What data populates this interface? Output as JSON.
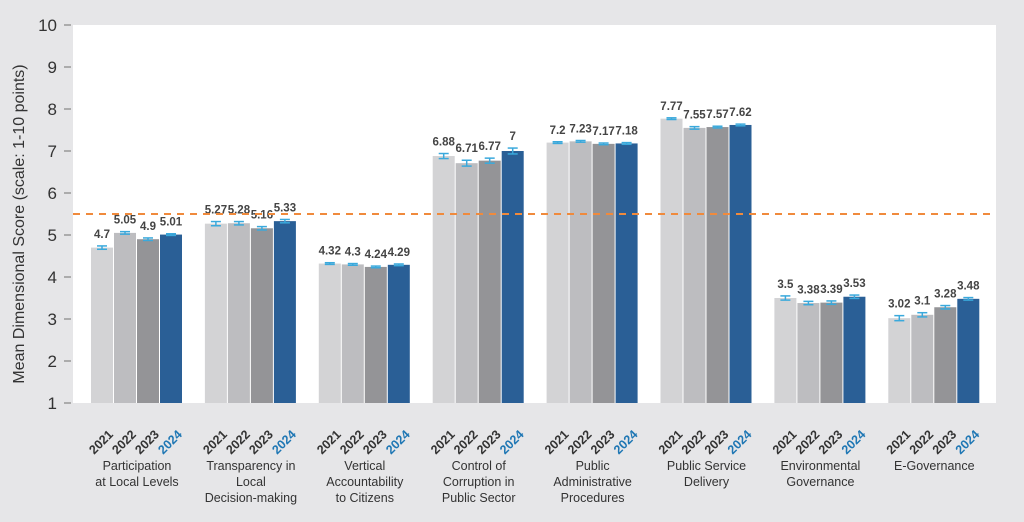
{
  "chart_data": {
    "type": "bar",
    "title": "",
    "xlabel": "",
    "ylabel": "Mean Dimensional Score (scale: 1-10 points)",
    "ylim": [
      1,
      10
    ],
    "yticks": [
      1,
      2,
      3,
      4,
      5,
      6,
      7,
      8,
      9,
      10
    ],
    "grid": false,
    "reference_line": {
      "value": 5.5,
      "style": "dashed",
      "color": "#f08a3c"
    },
    "categories": [
      "Participation at Local Levels",
      "Transparency in Local Decision-making",
      "Vertical Accountability to Citizens",
      "Control of Corruption in Public Sector",
      "Public Administrative Procedures",
      "Public Service Delivery",
      "Environmental Governance",
      "E-Governance"
    ],
    "category_lines": [
      [
        "Participation",
        "at Local Levels"
      ],
      [
        "Transparency in",
        "Local",
        "Decision-making"
      ],
      [
        "Vertical",
        "Accountability",
        "to Citizens"
      ],
      [
        "Control of",
        "Corruption in",
        "Public Sector"
      ],
      [
        "Public",
        "Administrative",
        "Procedures"
      ],
      [
        "Public Service",
        "Delivery"
      ],
      [
        "Environmental",
        "Governance"
      ],
      [
        "E-Governance"
      ]
    ],
    "series": [
      {
        "name": "2021",
        "color": "#d3d3d5",
        "values": [
          4.7,
          5.27,
          4.32,
          6.88,
          7.2,
          7.77,
          3.5,
          3.02
        ]
      },
      {
        "name": "2022",
        "color": "#bdbdc0",
        "values": [
          5.05,
          5.28,
          4.3,
          6.71,
          7.23,
          7.55,
          3.38,
          3.1
        ]
      },
      {
        "name": "2023",
        "color": "#949497",
        "values": [
          4.9,
          5.16,
          4.24,
          6.77,
          7.17,
          7.57,
          3.39,
          3.28
        ]
      },
      {
        "name": "2024",
        "color": "#2a5f96",
        "values": [
          5.01,
          5.33,
          4.29,
          7,
          7.18,
          7.62,
          3.53,
          3.48
        ],
        "highlight": true
      }
    ],
    "value_labels": [
      [
        "4.7",
        "5.05",
        "4.9",
        "5.01"
      ],
      [
        "5.27",
        "5.28",
        "5.16",
        "5.33"
      ],
      [
        "4.32",
        "4.3",
        "4.24",
        "4.29"
      ],
      [
        "6.88",
        "6.71",
        "6.77",
        "7"
      ],
      [
        "7.2",
        "7.23",
        "7.17",
        "7.18"
      ],
      [
        "7.77",
        "7.55",
        "7.57",
        "7.62"
      ],
      [
        "3.5",
        "3.38",
        "3.39",
        "3.53"
      ],
      [
        "3.02",
        "3.1",
        "3.28",
        "3.48"
      ]
    ],
    "error_bars": [
      [
        0.04,
        0.03,
        0.03,
        0.02
      ],
      [
        0.05,
        0.04,
        0.04,
        0.04
      ],
      [
        0.02,
        0.02,
        0.02,
        0.02
      ],
      [
        0.06,
        0.07,
        0.06,
        0.07
      ],
      [
        0.02,
        0.02,
        0.02,
        0.02
      ],
      [
        0.02,
        0.03,
        0.02,
        0.02
      ],
      [
        0.05,
        0.04,
        0.04,
        0.04
      ],
      [
        0.06,
        0.05,
        0.04,
        0.03
      ]
    ],
    "error_bar_color": "#3aa9dc",
    "highlight_year_color": "#1f77b4",
    "legend": "none"
  }
}
